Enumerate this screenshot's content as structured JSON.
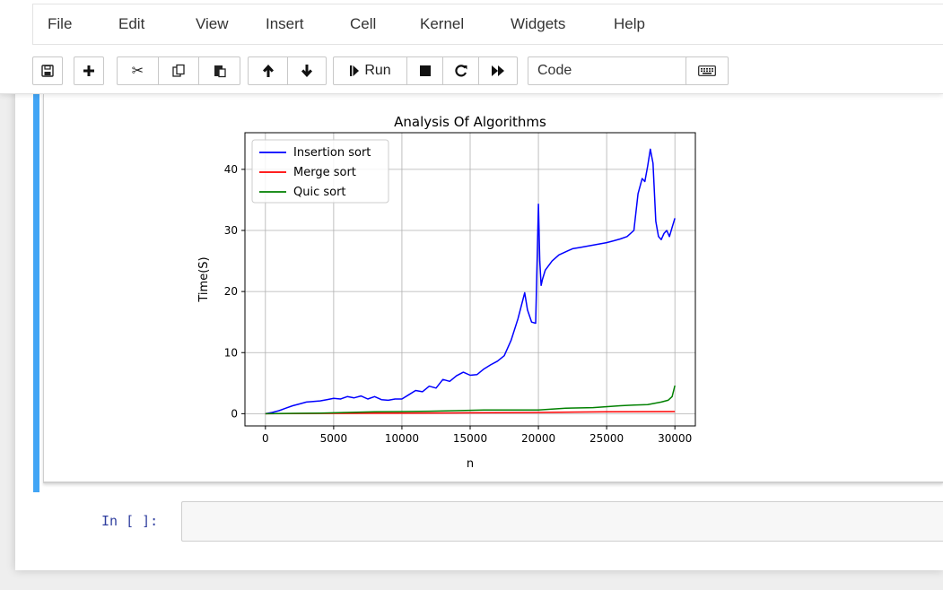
{
  "menu": [
    "File",
    "Edit",
    "View",
    "Insert",
    "Cell",
    "Kernel",
    "Widgets",
    "Help"
  ],
  "toolbar": {
    "save_icon": "floppy-disk-icon",
    "add_icon": "plus-icon",
    "cut_icon": "scissors-icon",
    "copy_icon": "copy-icon",
    "paste_icon": "paste-icon",
    "move_up_icon": "arrow-up-icon",
    "move_down_icon": "arrow-down-icon",
    "run_label": "Run",
    "interrupt_icon": "stop-icon",
    "restart_icon": "restart-icon",
    "run_all_icon": "fast-forward-icon",
    "cell_type": "Code",
    "keyboard_icon": "keyboard-icon"
  },
  "next_cell": {
    "prompt": "In [ ]:",
    "value": ""
  },
  "colors": {
    "insertion": "#0000ff",
    "merge": "#ff0000",
    "quick": "#008000",
    "cell_selected": "#42a5f5"
  },
  "chart_data": {
    "type": "line",
    "title": "Analysis Of Algorithms",
    "xlabel": "n",
    "ylabel": "Time(S)",
    "xlim": [
      -1500,
      31500
    ],
    "ylim": [
      -2,
      46
    ],
    "xticks": [
      0,
      5000,
      10000,
      15000,
      20000,
      25000,
      30000
    ],
    "yticks": [
      0,
      10,
      20,
      30,
      40
    ],
    "grid": true,
    "legend_position": "top-left",
    "series": [
      {
        "name": "Insertion sort",
        "color": "#0000ff",
        "x": [
          0,
          500,
          1000,
          1500,
          2000,
          2500,
          3000,
          3500,
          4000,
          4500,
          5000,
          5500,
          6000,
          6500,
          7000,
          7500,
          8000,
          8500,
          9000,
          9500,
          10000,
          10500,
          11000,
          11500,
          12000,
          12500,
          13000,
          13500,
          14000,
          14500,
          15000,
          15500,
          16000,
          16500,
          17000,
          17500,
          18000,
          18500,
          19000,
          19200,
          19500,
          19800,
          20000,
          20100,
          20200,
          20300,
          20500,
          21000,
          21500,
          22000,
          22500,
          23000,
          23500,
          24000,
          24500,
          25000,
          25500,
          26000,
          26500,
          27000,
          27300,
          27600,
          27800,
          28000,
          28200,
          28400,
          28600,
          28800,
          29000,
          29200,
          29400,
          29600,
          29800,
          30000
        ],
        "y": [
          0,
          0.2,
          0.5,
          0.9,
          1.3,
          1.6,
          1.9,
          2.0,
          2.1,
          2.3,
          2.5,
          2.4,
          2.8,
          2.6,
          2.9,
          2.4,
          2.8,
          2.3,
          2.2,
          2.4,
          2.4,
          3.1,
          3.8,
          3.6,
          4.5,
          4.2,
          5.6,
          5.3,
          6.2,
          6.8,
          6.3,
          6.4,
          7.3,
          8.0,
          8.6,
          9.5,
          12.0,
          15.5,
          19.8,
          17.0,
          15.0,
          14.8,
          34.3,
          25.0,
          21.0,
          22.0,
          23.5,
          25.0,
          26.0,
          26.5,
          27.0,
          27.2,
          27.4,
          27.6,
          27.8,
          28.0,
          28.3,
          28.6,
          29.0,
          30.0,
          36.0,
          38.5,
          38.0,
          40.5,
          43.3,
          41.0,
          31.5,
          29.0,
          28.5,
          29.5,
          30.0,
          29.0,
          30.5,
          32.0
        ]
      },
      {
        "name": "Merge sort",
        "color": "#ff0000",
        "x": [
          0,
          5000,
          10000,
          15000,
          20000,
          25000,
          30000
        ],
        "y": [
          0,
          0.05,
          0.1,
          0.15,
          0.2,
          0.3,
          0.35
        ]
      },
      {
        "name": "Quic sort",
        "color": "#008000",
        "x": [
          0,
          2000,
          4000,
          6000,
          8000,
          10000,
          12000,
          14000,
          16000,
          18000,
          20000,
          22000,
          24000,
          26000,
          27000,
          28000,
          29000,
          29500,
          29800,
          30000
        ],
        "y": [
          0,
          0.05,
          0.1,
          0.2,
          0.3,
          0.35,
          0.4,
          0.5,
          0.6,
          0.6,
          0.6,
          0.9,
          1.0,
          1.3,
          1.4,
          1.5,
          1.9,
          2.2,
          2.8,
          4.6
        ]
      }
    ]
  }
}
